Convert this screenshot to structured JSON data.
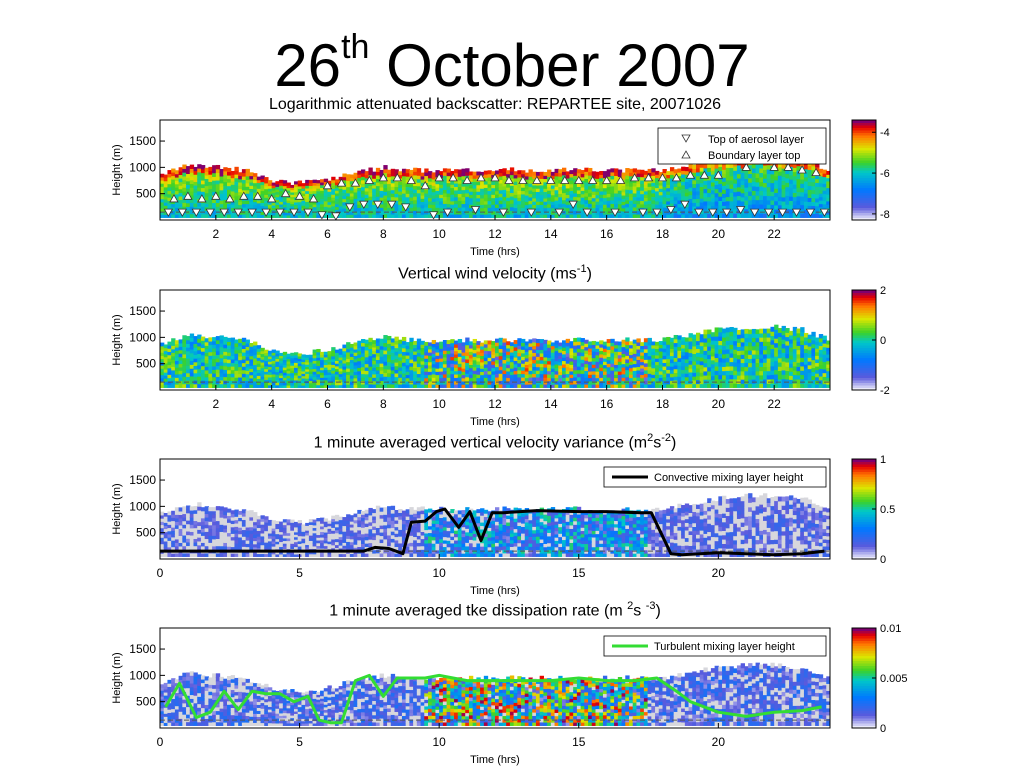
{
  "slide": {
    "title_main": "26",
    "title_sup": "th",
    "title_rest": " October 2007"
  },
  "chart_data": [
    {
      "type": "heatmap",
      "title": "Logarithmic attenuated backscatter: REPARTEE site, 20071026",
      "xlabel": "Time (hrs)",
      "ylabel": "Height (m)",
      "xlim": [
        0,
        24
      ],
      "ylim": [
        0,
        1900
      ],
      "xticks": [
        "2",
        "4",
        "6",
        "8",
        "10",
        "12",
        "14",
        "16",
        "18",
        "20",
        "22"
      ],
      "yticks": [
        "500",
        "1000",
        "1500"
      ],
      "colorbar": {
        "ticks": [
          "-4",
          "-6",
          "-8"
        ],
        "range": [
          -8.3,
          -3.4
        ]
      },
      "legend": {
        "position": "top-right",
        "entries": [
          "Top of aerosol layer",
          "Boundary layer top"
        ]
      },
      "series": [
        {
          "name": "Top of aerosol layer",
          "marker": "down-triangle",
          "x": [
            0.3,
            0.8,
            1.3,
            1.8,
            2.3,
            2.8,
            3.3,
            3.8,
            4.3,
            4.8,
            5.3,
            5.8,
            6.3,
            6.8,
            7.3,
            7.8,
            8.3,
            8.8,
            9.8,
            10.3,
            11.3,
            12.3,
            13.3,
            14.3,
            14.8,
            15.3,
            16.3,
            17.3,
            17.8,
            18.3,
            18.8,
            19.3,
            19.8,
            20.3,
            20.8,
            21.3,
            21.8,
            22.3,
            22.8,
            23.3,
            23.8
          ],
          "y": [
            150,
            150,
            150,
            150,
            150,
            150,
            150,
            150,
            150,
            150,
            150,
            100,
            80,
            250,
            300,
            300,
            300,
            250,
            100,
            150,
            200,
            150,
            150,
            150,
            300,
            150,
            150,
            150,
            150,
            200,
            300,
            150,
            150,
            150,
            200,
            150,
            150,
            150,
            150,
            150,
            150
          ]
        },
        {
          "name": "Boundary layer top",
          "marker": "up-triangle",
          "x": [
            0.5,
            1.0,
            1.5,
            2.0,
            2.5,
            3.0,
            3.5,
            4.0,
            4.5,
            5.0,
            5.5,
            6.0,
            6.5,
            7.0,
            7.5,
            8.0,
            8.5,
            9.0,
            9.5,
            10.0,
            10.5,
            11.0,
            11.5,
            12.0,
            12.5,
            13.0,
            13.5,
            14.0,
            14.5,
            15.0,
            15.5,
            16.0,
            16.5,
            17.0,
            17.5,
            18.0,
            18.5,
            19.0,
            19.5,
            20.0,
            21.0,
            22.0,
            22.5,
            23.0,
            23.5
          ],
          "y": [
            400,
            450,
            400,
            450,
            400,
            450,
            450,
            400,
            500,
            450,
            400,
            650,
            700,
            700,
            750,
            800,
            800,
            750,
            650,
            800,
            800,
            750,
            800,
            800,
            750,
            750,
            750,
            750,
            750,
            750,
            750,
            750,
            750,
            800,
            800,
            800,
            800,
            850,
            850,
            850,
            1000,
            1000,
            1000,
            950,
            900
          ]
        }
      ],
      "dashed_line": {
        "y": 150
      }
    },
    {
      "type": "heatmap",
      "title_main": "Vertical wind velocity (ms",
      "title_sup": "-1",
      "title_end": ")",
      "xlabel": "Time (hrs)",
      "ylabel": "Height (m)",
      "xlim": [
        0,
        24
      ],
      "ylim": [
        0,
        1900
      ],
      "xticks": [
        "2",
        "4",
        "6",
        "8",
        "10",
        "12",
        "14",
        "16",
        "18",
        "20",
        "22"
      ],
      "yticks": [
        "500",
        "1000",
        "1500"
      ],
      "colorbar": {
        "ticks": [
          "2",
          "0",
          "-2"
        ],
        "range": [
          -2,
          2
        ]
      },
      "signal_top": {
        "x": [
          0,
          1,
          2,
          3,
          4,
          5,
          6,
          7,
          8,
          9,
          10,
          11,
          12,
          13,
          14,
          15,
          16,
          17,
          18,
          19,
          20,
          21,
          22,
          23,
          24
        ],
        "y": [
          800,
          1000,
          950,
          900,
          700,
          650,
          700,
          850,
          950,
          900,
          900,
          900,
          900,
          900,
          900,
          900,
          900,
          900,
          900,
          1000,
          1100,
          1150,
          1150,
          1100,
          900
        ]
      },
      "dashed_line": {
        "y": 150
      }
    },
    {
      "type": "heatmap",
      "title_main": "1 minute averaged vertical velocity variance (m",
      "title_sup1": "2",
      "title_mid": "s",
      "title_sup2": "-2",
      "title_end": ")",
      "xlabel": "Time (hrs)",
      "ylabel": "Height (m)",
      "xlim": [
        0,
        24
      ],
      "ylim": [
        0,
        1900
      ],
      "xticks": [
        "0",
        "5",
        "10",
        "15",
        "20"
      ],
      "yticks": [
        "500",
        "1000",
        "1500"
      ],
      "colorbar": {
        "ticks": [
          "1",
          "0.5",
          "0"
        ],
        "range": [
          0,
          1
        ]
      },
      "legend": {
        "position": "top-right",
        "entries": [
          "Convective mixing layer height"
        ]
      },
      "series": [
        {
          "name": "Convective mixing layer height",
          "color": "#000000",
          "x": [
            0,
            7.3,
            7.7,
            8.2,
            8.7,
            9.0,
            9.5,
            9.9,
            10.2,
            10.7,
            11.1,
            11.5,
            11.9,
            12.3,
            13.5,
            15.0,
            16.0,
            17.2,
            17.6,
            18.3,
            18.7,
            20.0,
            21.0,
            22.0,
            23.0,
            23.8
          ],
          "y": [
            150,
            150,
            220,
            200,
            100,
            700,
            720,
            900,
            950,
            600,
            900,
            350,
            880,
            880,
            920,
            900,
            900,
            880,
            880,
            100,
            80,
            120,
            100,
            80,
            100,
            150
          ]
        }
      ],
      "dashed_line": {
        "y": 150
      }
    },
    {
      "type": "heatmap",
      "title_main": "1 minute averaged tke dissipation rate (m ",
      "title_sup1": "2",
      "title_mid": "s ",
      "title_sup2": "-3",
      "title_end": ")",
      "xlabel": "Time (hrs)",
      "ylabel": "Height (m)",
      "xlim": [
        0,
        24
      ],
      "ylim": [
        0,
        1900
      ],
      "xticks": [
        "0",
        "5",
        "10",
        "15",
        "20"
      ],
      "yticks": [
        "500",
        "1000",
        "1500"
      ],
      "colorbar": {
        "ticks": [
          "0.01",
          "0.005",
          "0"
        ],
        "range": [
          0,
          0.01
        ]
      },
      "legend": {
        "position": "top-right",
        "entries": [
          "Turbulent mixing layer height"
        ]
      },
      "series": [
        {
          "name": "Turbulent mixing layer height",
          "color": "#33dd33",
          "x": [
            0.2,
            0.7,
            1.3,
            1.8,
            2.3,
            2.8,
            3.3,
            3.8,
            4.3,
            4.8,
            5.3,
            5.7,
            6.1,
            6.5,
            7.0,
            7.5,
            8.0,
            8.5,
            9.0,
            9.5,
            10.0,
            10.5,
            11.0,
            12.0,
            13.0,
            14.0,
            15.0,
            16.0,
            17.0,
            17.8,
            18.5,
            19.0,
            20.0,
            21.0,
            22.0,
            23.0,
            23.7
          ],
          "y": [
            400,
            850,
            200,
            300,
            700,
            350,
            700,
            650,
            650,
            500,
            600,
            150,
            100,
            100,
            900,
            1000,
            600,
            950,
            950,
            950,
            1000,
            950,
            900,
            900,
            900,
            900,
            950,
            900,
            900,
            950,
            700,
            500,
            300,
            220,
            300,
            330,
            400
          ]
        }
      ],
      "dashed_line": {
        "y": 150
      }
    }
  ]
}
